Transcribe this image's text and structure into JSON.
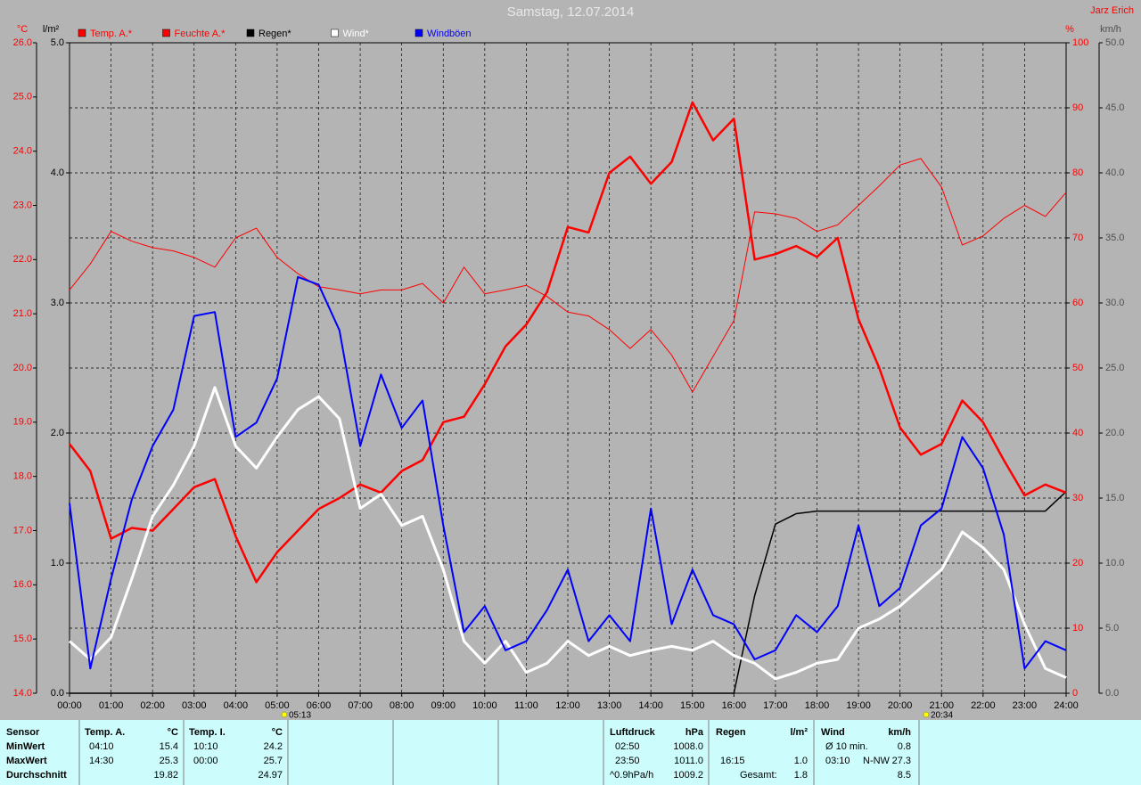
{
  "chart_data": {
    "type": "line",
    "title": "Samstag, 12.07.2014",
    "author": "Jarz Erich",
    "xlim": [
      0,
      24
    ],
    "xticks": [
      {
        "value": 0,
        "label": "00:00"
      },
      {
        "value": 1,
        "label": "01:00"
      },
      {
        "value": 2,
        "label": "02:00"
      },
      {
        "value": 3,
        "label": "03:00"
      },
      {
        "value": 4,
        "label": "04:00"
      },
      {
        "value": 5,
        "label": "05:00"
      },
      {
        "value": 6,
        "label": "06:00"
      },
      {
        "value": 7,
        "label": "07:00"
      },
      {
        "value": 8,
        "label": "08:00"
      },
      {
        "value": 9,
        "label": "09:00"
      },
      {
        "value": 10,
        "label": "10:00"
      },
      {
        "value": 11,
        "label": "11:00"
      },
      {
        "value": 12,
        "label": "12:00"
      },
      {
        "value": 13,
        "label": "13:00"
      },
      {
        "value": 14,
        "label": "14:00"
      },
      {
        "value": 15,
        "label": "15:00"
      },
      {
        "value": 16,
        "label": "16:00"
      },
      {
        "value": 17,
        "label": "17:00"
      },
      {
        "value": 18,
        "label": "18:00"
      },
      {
        "value": 19,
        "label": "19:00"
      },
      {
        "value": 20,
        "label": "20:00"
      },
      {
        "value": 21,
        "label": "21:00"
      },
      {
        "value": 22,
        "label": "22:00"
      },
      {
        "value": 23,
        "label": "23:00"
      },
      {
        "value": 24,
        "label": "24:00"
      }
    ],
    "xgrid": true,
    "axes": [
      {
        "unit": "°C",
        "color": "#ff0000",
        "lim": [
          14,
          26
        ],
        "grid": false,
        "ticks": [
          {
            "value": 14,
            "label": "14.0"
          },
          {
            "value": 15,
            "label": "15.0"
          },
          {
            "value": 16,
            "label": "16.0"
          },
          {
            "value": 17,
            "label": "17.0"
          },
          {
            "value": 18,
            "label": "18.0"
          },
          {
            "value": 19,
            "label": "19.0"
          },
          {
            "value": 20,
            "label": "20.0"
          },
          {
            "value": 21,
            "label": "21.0"
          },
          {
            "value": 22,
            "label": "22.0"
          },
          {
            "value": 23,
            "label": "23.0"
          },
          {
            "value": 24,
            "label": "24.0"
          },
          {
            "value": 25,
            "label": "25.0"
          },
          {
            "value": 26,
            "label": "26.0"
          }
        ]
      },
      {
        "unit": "l/m²",
        "color": "#000000",
        "lim": [
          0,
          5
        ],
        "grid": false,
        "ticks": [
          {
            "value": 0,
            "label": "0.0"
          },
          {
            "value": 1,
            "label": "1.0"
          },
          {
            "value": 2,
            "label": "2.0"
          },
          {
            "value": 3,
            "label": "3.0"
          },
          {
            "value": 4,
            "label": "4.0"
          },
          {
            "value": 5,
            "label": "5.0"
          }
        ]
      },
      {
        "unit": "%",
        "color": "#ff0000",
        "lim": [
          0,
          100
        ],
        "grid": true,
        "ticks": [
          0,
          10,
          20,
          30,
          40,
          50,
          60,
          70,
          80,
          90,
          100
        ]
      },
      {
        "unit": "km/h",
        "color": "#505050",
        "lim": [
          0,
          50
        ],
        "grid": false,
        "ticks": [
          {
            "value": 0,
            "label": "0.0"
          },
          {
            "value": 5,
            "label": "5.0"
          },
          {
            "value": 10,
            "label": "10.0"
          },
          {
            "value": 15,
            "label": "15.0"
          },
          {
            "value": 20,
            "label": "20.0"
          },
          {
            "value": 25,
            "label": "25.0"
          },
          {
            "value": 30,
            "label": "30.0"
          },
          {
            "value": 35,
            "label": "35.0"
          },
          {
            "value": 40,
            "label": "40.0"
          },
          {
            "value": 45,
            "label": "45.0"
          },
          {
            "value": 50,
            "label": "50.0"
          }
        ]
      }
    ],
    "x": [
      0,
      0.5,
      1,
      1.5,
      2,
      2.5,
      3,
      3.5,
      4,
      4.5,
      5,
      5.5,
      6,
      6.5,
      7,
      7.5,
      8,
      8.5,
      9,
      9.5,
      10,
      10.5,
      11,
      11.5,
      12,
      12.5,
      13,
      13.5,
      14,
      14.5,
      15,
      15.5,
      16,
      16.5,
      17,
      17.5,
      18,
      18.5,
      19,
      19.5,
      20,
      20.5,
      21,
      21.5,
      22,
      22.5,
      23,
      23.5,
      24
    ],
    "series": [
      {
        "name": "Temp. A.*",
        "color": "#ff0000",
        "width": 2.5,
        "axis": 0,
        "values": [
          18.6,
          18.1,
          16.85,
          17.05,
          17.0,
          17.4,
          17.8,
          17.95,
          16.9,
          16.05,
          16.6,
          17.0,
          17.4,
          17.6,
          17.85,
          17.7,
          18.1,
          18.3,
          19.0,
          19.1,
          19.7,
          20.4,
          20.8,
          21.4,
          22.6,
          22.5,
          23.6,
          23.9,
          23.4,
          23.8,
          24.9,
          24.2,
          24.6,
          22.0,
          22.1,
          22.25,
          22.05,
          22.4,
          20.9,
          20.0,
          18.9,
          18.4,
          18.6,
          19.4,
          19.0,
          18.3,
          17.65,
          17.85,
          17.7
        ]
      },
      {
        "name": "Feuchte A.*",
        "color": "#ff0000",
        "width": 1,
        "axis": 2,
        "values": [
          62,
          66,
          71,
          69.5,
          68.5,
          68,
          67,
          65.5,
          70,
          71.5,
          67,
          64.5,
          62.5,
          62,
          61.4,
          62,
          62,
          63,
          60,
          65.5,
          61.4,
          62,
          62.7,
          61,
          58.6,
          58,
          55.9,
          53,
          55.9,
          52,
          46.3,
          51.8,
          57.3,
          74,
          73.7,
          73,
          71,
          72,
          75,
          78,
          81.2,
          82.2,
          77.8,
          68.9,
          70.3,
          73,
          75,
          73.3,
          77
        ]
      },
      {
        "name": "Regen*",
        "color": "#000000",
        "width": 1.5,
        "axis": 1,
        "values": [
          0,
          0,
          0,
          0,
          0,
          0,
          0,
          0,
          0,
          0,
          0,
          0,
          0,
          0,
          0,
          0,
          0,
          0,
          0,
          0,
          0,
          0,
          0,
          0,
          0,
          0,
          0,
          0,
          0,
          0,
          0,
          0,
          0,
          0.75,
          1.3,
          1.38,
          1.4,
          1.4,
          1.4,
          1.4,
          1.4,
          1.4,
          1.4,
          1.4,
          1.4,
          1.4,
          1.4,
          1.4,
          1.55
        ]
      },
      {
        "name": "Wind*",
        "color": "#ffffff",
        "width": 3,
        "axis": 3,
        "values": [
          4.0,
          2.6,
          4.3,
          8.8,
          13.6,
          16,
          19,
          23.5,
          19,
          17.3,
          19.7,
          21.8,
          22.8,
          21.1,
          14.2,
          15.3,
          12.9,
          13.6,
          9.5,
          4.0,
          2.3,
          4.0,
          1.6,
          2.3,
          4.0,
          2.9,
          3.6,
          2.9,
          3.3,
          3.6,
          3.3,
          4.0,
          2.9,
          2.3,
          1.1,
          1.6,
          2.3,
          2.6,
          5.0,
          5.7,
          6.7,
          8.1,
          9.5,
          12.4,
          11.2,
          9.5,
          5.3,
          1.9,
          1.2
        ]
      },
      {
        "name": "Windböen",
        "color": "#0000ff",
        "width": 2,
        "axis": 3,
        "values": [
          14.6,
          1.9,
          8.8,
          14.9,
          19,
          21.8,
          29,
          29.3,
          19.7,
          20.8,
          24.2,
          32,
          31.4,
          27.9,
          19,
          24.5,
          20.4,
          22.5,
          12.9,
          4.7,
          6.7,
          3.3,
          4.0,
          6.4,
          9.5,
          4.0,
          6.0,
          4.0,
          14.2,
          5.3,
          9.5,
          6.0,
          5.3,
          2.6,
          3.3,
          6.0,
          4.7,
          6.7,
          12.9,
          6.7,
          8.1,
          12.9,
          14.2,
          19.7,
          17.3,
          12.2,
          1.9,
          4.0,
          3.3
        ]
      }
    ],
    "annotations": [
      {
        "label": "05:13"
      },
      {
        "label": "20:34"
      }
    ]
  },
  "table": {
    "row_labels": {
      "header": "Sensor",
      "rows": [
        "MinWert",
        "MaxWert",
        "Durchschnitt"
      ]
    },
    "blocks": [
      {
        "header": [
          "Temp. A.",
          "°C"
        ],
        "rows": [
          [
            "04:10",
            "15.4"
          ],
          [
            "14:30",
            "25.3"
          ],
          [
            null,
            "19.82"
          ]
        ]
      },
      {
        "header": [
          "Temp. I.",
          "°C"
        ],
        "rows": [
          [
            "10:10",
            "24.2"
          ],
          [
            "00:00",
            "25.7"
          ],
          [
            null,
            "24.97"
          ]
        ]
      },
      {
        "header": [
          "Luftdruck",
          "hPa"
        ],
        "rows": [
          [
            "02:50",
            "1008.0"
          ],
          [
            "23:50",
            "1011.0"
          ],
          [
            "^0.9hPa/h",
            "1009.2"
          ]
        ]
      },
      {
        "header": [
          "Regen",
          "l/m²"
        ],
        "rows": [
          [
            null,
            null
          ],
          [
            "16:15",
            "1.0"
          ],
          [
            "Gesamt:",
            "1.8"
          ]
        ]
      },
      {
        "header": [
          "Wind",
          "km/h"
        ],
        "rows": [
          [
            "Ø 10 min.",
            null,
            "0.8"
          ],
          [
            "03:10",
            "N-NW",
            "27.3"
          ],
          [
            null,
            null,
            "8.5"
          ]
        ]
      }
    ]
  }
}
